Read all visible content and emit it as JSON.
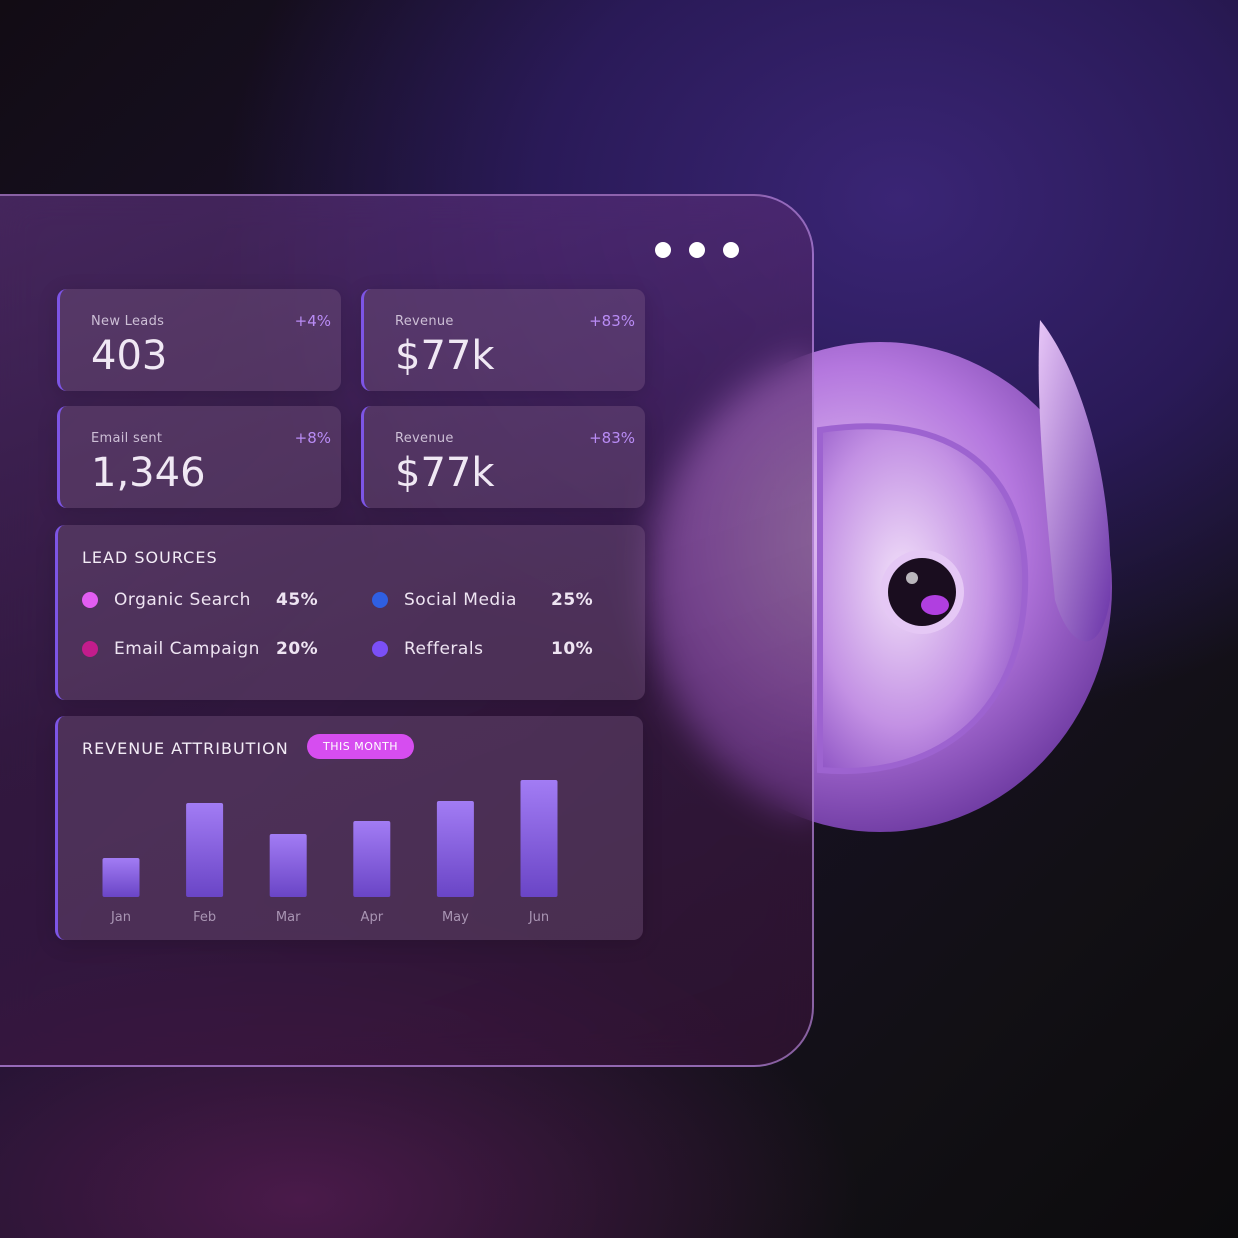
{
  "stats": [
    {
      "label": "New Leads",
      "value": "403",
      "change": "+4%"
    },
    {
      "label": "Revenue",
      "value": "$77k",
      "change": "+83%"
    },
    {
      "label": "Email sent",
      "value": "1,346",
      "change": "+8%"
    },
    {
      "label": "Revenue",
      "value": "$77k",
      "change": "+83%"
    }
  ],
  "lead_sources": {
    "title": "LEAD SOURCES",
    "items": [
      {
        "name": "Organic Search",
        "share": "45%",
        "color": "#e25df2"
      },
      {
        "name": "Social Media",
        "share": "25%",
        "color": "#2f5fe2"
      },
      {
        "name": "Email Campaign",
        "share": "20%",
        "color": "#c31c8c"
      },
      {
        "name": "Refferals",
        "share": "10%",
        "color": "#7b4ff6"
      }
    ]
  },
  "revenue_attribution": {
    "title": "REVENUE ATTRIBUTION",
    "badge": "THIS MONTH",
    "chart": {
      "type": "bar",
      "categories": [
        "Jan",
        "Feb",
        "Mar",
        "Apr",
        "May",
        "Jun"
      ],
      "values": [
        39,
        94,
        63,
        76,
        96,
        117
      ],
      "ylim": [
        0,
        120
      ]
    }
  }
}
